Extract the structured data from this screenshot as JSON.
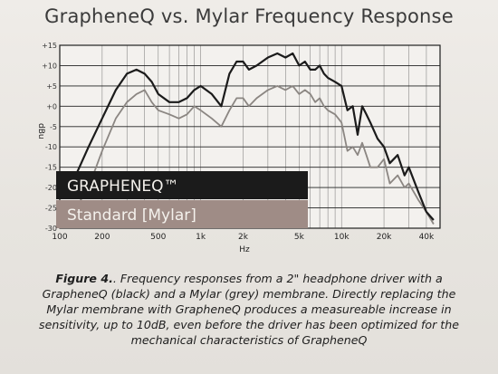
{
  "chart_data": {
    "type": "line",
    "title": "GrapheneQ vs. Mylar Frequency Response",
    "xlabel": "Hz",
    "ylabel": "dBu",
    "x_scale": "log",
    "xlim": [
      100,
      50000
    ],
    "ylim": [
      -30,
      15
    ],
    "grid": true,
    "x_ticks": [
      {
        "v": 100,
        "label": "100"
      },
      {
        "v": 200,
        "label": "200"
      },
      {
        "v": 500,
        "label": "500"
      },
      {
        "v": 1000,
        "label": "1k"
      },
      {
        "v": 2000,
        "label": "2k"
      },
      {
        "v": 5000,
        "label": "5k"
      },
      {
        "v": 10000,
        "label": "10k"
      },
      {
        "v": 20000,
        "label": "20k"
      },
      {
        "v": 40000,
        "label": "40k"
      }
    ],
    "y_ticks": [
      {
        "v": 15,
        "label": "+15"
      },
      {
        "v": 10,
        "label": "+10"
      },
      {
        "v": 5,
        "label": "+5"
      },
      {
        "v": 0,
        "label": "+0"
      },
      {
        "v": -5,
        "label": "-5"
      },
      {
        "v": -10,
        "label": "-10"
      },
      {
        "v": -15,
        "label": "-15"
      },
      {
        "v": -20,
        "label": "-20"
      },
      {
        "v": -25,
        "label": "-25"
      },
      {
        "v": -30,
        "label": "-30"
      }
    ],
    "legend_position": "bottom-left",
    "series": [
      {
        "name": "GRAPHENEQ™",
        "color": "#1b1b1b",
        "legend_bg": "#1b1b1b",
        "x": [
          100,
          130,
          160,
          200,
          250,
          300,
          350,
          400,
          450,
          500,
          600,
          700,
          800,
          900,
          1000,
          1200,
          1400,
          1600,
          1800,
          2000,
          2200,
          2500,
          3000,
          3500,
          4000,
          4500,
          5000,
          5500,
          6000,
          6500,
          7000,
          7500,
          8000,
          9000,
          10000,
          11000,
          12000,
          13000,
          14000,
          15000,
          16000,
          18000,
          20000,
          22000,
          25000,
          28000,
          30000,
          35000,
          40000,
          45000
        ],
        "y": [
          -22,
          -17,
          -10,
          -3,
          4,
          8,
          9,
          8,
          6,
          3,
          1,
          1,
          2,
          4,
          5,
          3,
          0,
          8,
          11,
          11,
          9,
          10,
          12,
          13,
          12,
          13,
          10,
          11,
          9,
          9,
          10,
          8,
          7,
          6,
          5,
          -1,
          0,
          -7,
          0,
          -2,
          -4,
          -8,
          -10,
          -14,
          -12,
          -17,
          -15,
          -21,
          -26,
          -28
        ]
      },
      {
        "name": "Standard [Mylar]",
        "color": "#8b8682",
        "legend_bg": "#9f8c86",
        "x": [
          100,
          130,
          160,
          200,
          250,
          300,
          350,
          400,
          450,
          500,
          600,
          700,
          800,
          900,
          1000,
          1200,
          1400,
          1600,
          1800,
          2000,
          2200,
          2500,
          3000,
          3500,
          4000,
          4500,
          5000,
          5500,
          6000,
          6500,
          7000,
          7500,
          8000,
          9000,
          10000,
          11000,
          12000,
          13000,
          14000,
          15000,
          16000,
          18000,
          20000,
          22000,
          25000,
          28000,
          30000,
          35000,
          40000,
          45000
        ],
        "y": [
          -29,
          -25,
          -20,
          -11,
          -3,
          1,
          3,
          4,
          1,
          -1,
          -2,
          -3,
          -2,
          0,
          -1,
          -3,
          -5,
          -1,
          2,
          2,
          0,
          2,
          4,
          5,
          4,
          5,
          3,
          4,
          3,
          1,
          2,
          0,
          -1,
          -2,
          -4,
          -11,
          -10,
          -12,
          -9,
          -12,
          -15,
          -15,
          -13,
          -19,
          -17,
          -20,
          -19,
          -23,
          -26,
          -29
        ]
      }
    ]
  },
  "caption": {
    "figure_label": "Figure 4.",
    "text": ". Frequency responses from a 2\" headphone driver with a GrapheneQ (black) and a Mylar (grey) membrane. Directly replacing the Mylar membrane with GrapheneQ produces a measureable increase in sensitivity, up to 10dB, even before the driver has been optimized for the mechanical characteristics of GrapheneQ"
  }
}
